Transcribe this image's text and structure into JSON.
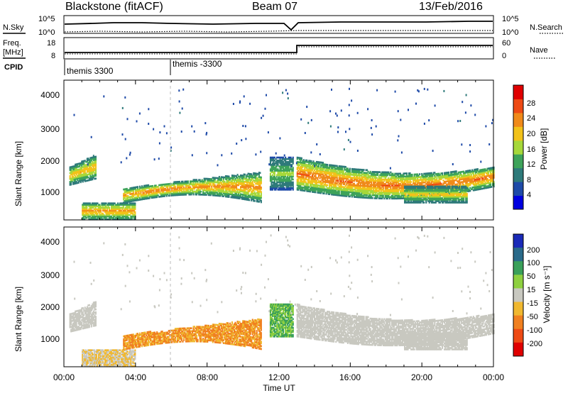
{
  "header": {
    "station": "Blackstone (fitACF)",
    "beam": "Beam 07",
    "date": "13/Feb/2016"
  },
  "noise_panel": {
    "left_label": "N.Sky",
    "right_label": "N.Search",
    "left_ticks": [
      "10^5",
      "10^0"
    ],
    "right_ticks": [
      "10^5",
      "10^0"
    ]
  },
  "freq_panel": {
    "left_label_line1": "Freq.",
    "left_label_line2": "[MHz]",
    "right_label": "Nave",
    "left_ticks": [
      "18",
      "8"
    ],
    "right_ticks": [
      "60",
      "0"
    ]
  },
  "cpid": {
    "label": "CPID",
    "program_1": "themis 3300",
    "program_2": "themis -3300"
  },
  "power_panel": {
    "ylabel": "Slant Range [km]",
    "yticks": [
      "4000",
      "3000",
      "2000",
      "1000"
    ],
    "colorbar_label": "Power [dB]",
    "colorbar_ticks": [
      "28",
      "24",
      "20",
      "16",
      "12",
      "8",
      "4"
    ],
    "colors": [
      "#0000e0",
      "#1e4aa8",
      "#2e7a7a",
      "#3ea35a",
      "#a6d83a",
      "#f2c21a",
      "#f08a1a",
      "#ee4a14",
      "#e00000"
    ]
  },
  "velocity_panel": {
    "ylabel": "Slant Range [km]",
    "yticks": [
      "4000",
      "3000",
      "2000",
      "1000"
    ],
    "colorbar_label": "Velocity [m s⁻¹]",
    "colorbar_ticks": [
      "200",
      "100",
      "50",
      "15",
      "-15",
      "-50",
      "-100",
      "-200"
    ],
    "colors": [
      "#1a2ab8",
      "#2a6a8a",
      "#3aa05a",
      "#8ed040",
      "#c8c8c0",
      "#f0b830",
      "#f08020",
      "#ee4a14",
      "#e00000"
    ]
  },
  "xaxis": {
    "label": "Time UT",
    "ticks": [
      "00:00",
      "04:00",
      "08:00",
      "12:00",
      "16:00",
      "20:00",
      "00:00"
    ]
  },
  "chart_data": {
    "type": "heatmap",
    "x_hours": [
      0,
      24
    ],
    "y_km": [
      180,
      4500
    ],
    "frequency_MHz": [
      {
        "from": 0,
        "to": 13,
        "value": 10.5
      },
      {
        "from": 13,
        "to": 24,
        "value": 14.5
      }
    ],
    "regions": [
      {
        "name": "early",
        "t": [
          0.3,
          1.8
        ],
        "r": [
          1200,
          2200
        ],
        "power": 20,
        "velocity": -10
      },
      {
        "name": "near",
        "t": [
          1.0,
          4.0
        ],
        "r": [
          180,
          700
        ],
        "power": 22,
        "velocity": -40
      },
      {
        "name": "main-morning",
        "t": [
          3.3,
          11.0
        ],
        "r": [
          700,
          1600
        ],
        "power": 22,
        "velocity": -80
      },
      {
        "name": "noon",
        "t": [
          11.5,
          12.8
        ],
        "r": [
          1100,
          2100
        ],
        "power": 14,
        "velocity": 60
      },
      {
        "name": "afternoon",
        "t": [
          13.0,
          24.0
        ],
        "r": [
          900,
          2200
        ],
        "power": 24,
        "velocity": 0
      },
      {
        "name": "evening-lower",
        "t": [
          19.0,
          22.5
        ],
        "r": [
          700,
          1200
        ],
        "power": 18,
        "velocity": 0
      }
    ]
  }
}
